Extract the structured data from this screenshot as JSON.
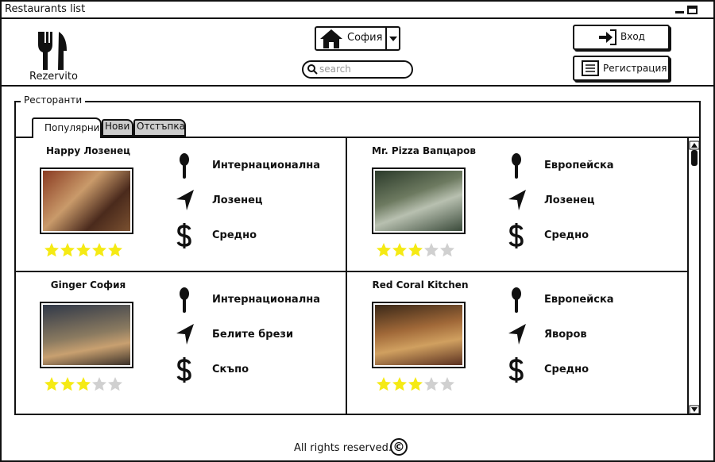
{
  "window": {
    "title": "Restaurants list"
  },
  "header": {
    "logo": "Rezervito",
    "city": "София",
    "search_placeholder": "search",
    "login": "Вход",
    "register": "Регистрация"
  },
  "section": {
    "title": "Ресторанти",
    "tabs": [
      "Популярни",
      "Нови",
      "Отстъпка"
    ],
    "stars_total": 5,
    "restaurants": [
      {
        "name": "Happy Лозенец",
        "cuisine": "Интернационална",
        "district": "Лозенец",
        "price": "Средно",
        "rating": 5
      },
      {
        "name": "Mr. Pizza Вапцаров",
        "cuisine": "Европейска",
        "district": "Лозенец",
        "price": "Средно",
        "rating": 3
      },
      {
        "name": "Ginger София",
        "cuisine": "Интернационална",
        "district": "Белите брези",
        "price": "Скъпо",
        "rating": 3
      },
      {
        "name": "Red Coral Kitchen",
        "cuisine": "Европейска",
        "district": "Яворов",
        "price": "Средно",
        "rating": 3
      }
    ]
  },
  "footer": {
    "text": "All rights reserved.",
    "symbol": "©"
  }
}
